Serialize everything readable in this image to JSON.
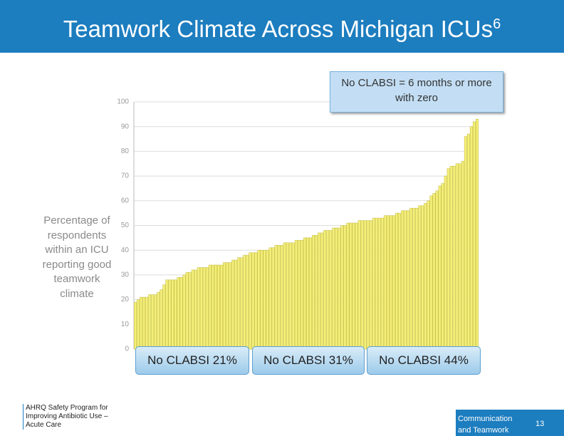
{
  "chart_data": {
    "type": "bar",
    "title": "Teamwork Climate Across Michigan ICUs",
    "title_superscript": "6",
    "y_label": "Percentage of respondents within an ICU reporting good teamwork climate",
    "callout": "No CLABSI = 6 months or more with zero",
    "groups": [
      "No CLABSI 21%",
      "No CLABSI 31%",
      "No CLABSI 44%"
    ],
    "color": "#f4ef78",
    "ylim": [
      0,
      100
    ],
    "yticks": [
      0,
      10,
      20,
      30,
      40,
      50,
      60,
      70,
      80,
      90,
      100
    ],
    "grid": true,
    "values": [
      19,
      20,
      21,
      21,
      21,
      22,
      22,
      22,
      23,
      24,
      26,
      28,
      28,
      28,
      28,
      29,
      29,
      30,
      31,
      31,
      32,
      32,
      33,
      33,
      33,
      33,
      34,
      34,
      34,
      34,
      34,
      35,
      35,
      35,
      36,
      36,
      37,
      37,
      38,
      38,
      39,
      39,
      39,
      40,
      40,
      40,
      40,
      41,
      41,
      42,
      42,
      42,
      43,
      43,
      43,
      43,
      44,
      44,
      44,
      45,
      45,
      45,
      46,
      46,
      47,
      47,
      48,
      48,
      48,
      49,
      49,
      49,
      50,
      50,
      51,
      51,
      51,
      51,
      52,
      52,
      52,
      52,
      52,
      53,
      53,
      53,
      53,
      54,
      54,
      54,
      54,
      55,
      55,
      56,
      56,
      56,
      57,
      57,
      57,
      58,
      58,
      59,
      60,
      62,
      63,
      64,
      66,
      67,
      70,
      73,
      74,
      74,
      75,
      75,
      76,
      86,
      87,
      90,
      92,
      93
    ]
  },
  "footer": {
    "program": "AHRQ Safety Program for Improving Antibiotic Use – Acute Care",
    "section": "Communication and Teamwork",
    "page": "13"
  }
}
